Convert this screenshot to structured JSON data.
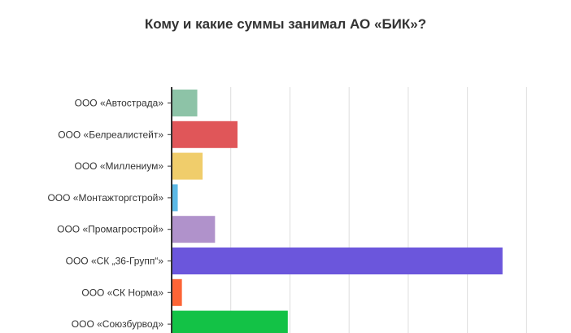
{
  "chart_data": {
    "type": "bar",
    "orientation": "horizontal",
    "title": "Кому и какие суммы занимал АО «БИК»?",
    "categories": [
      "ООО «Автострада»",
      "ООО «Белреалистейт»",
      "ООО «Миллениум»",
      "ООО «Монтажторгстрой»",
      "ООО «Промагрострой»",
      "ООО «СК „36-Групп“»",
      "ООО «СК Норма»",
      "ООО «Союзбурвод»"
    ],
    "values": [
      4.2,
      11.0,
      5.1,
      0.9,
      7.2,
      55.8,
      1.6,
      19.5
    ],
    "colors": [
      "#8dc3a7",
      "#e05659",
      "#f0cd6b",
      "#5db9e6",
      "#b092cb",
      "#6b56dc",
      "#fc6436",
      "#13c246"
    ],
    "xlim": [
      0,
      66
    ],
    "grid": true,
    "legend": "none"
  }
}
